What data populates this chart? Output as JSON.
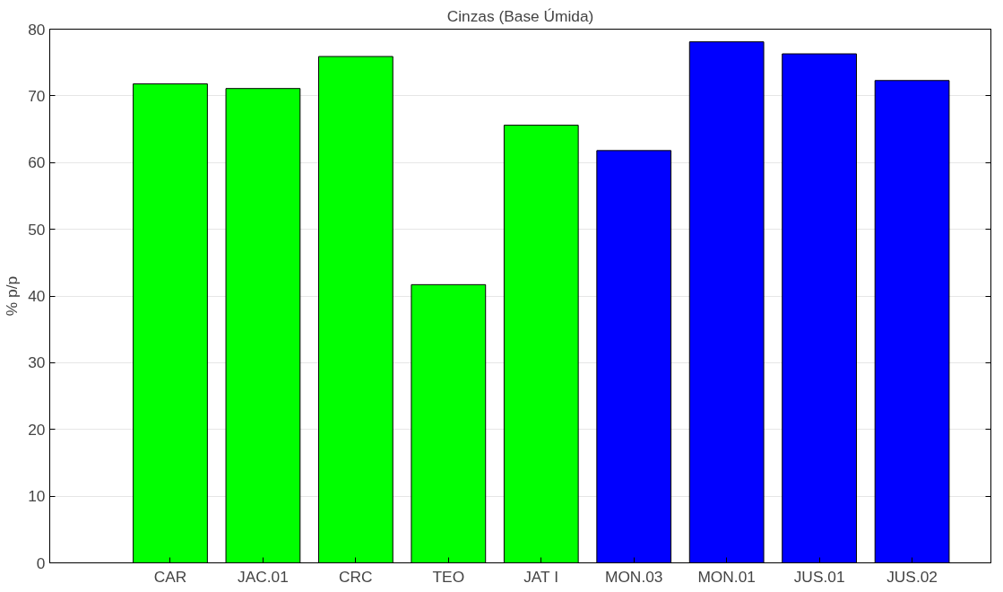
{
  "chart_data": {
    "type": "bar",
    "title": "Cinzas (Base Úmida)",
    "ylabel": "% p/p",
    "categories": [
      "CAR",
      "JAC.01",
      "CRC",
      "TEO",
      "JAT I",
      "MON.03",
      "MON.01",
      "JUS.01",
      "JUS.02"
    ],
    "values": [
      71.8,
      71.1,
      75.9,
      41.7,
      65.6,
      61.8,
      78.1,
      76.3,
      72.3
    ],
    "colors": [
      "#00ff00",
      "#00ff00",
      "#00ff00",
      "#00ff00",
      "#00ff00",
      "#0000ff",
      "#0000ff",
      "#0000ff",
      "#0000ff"
    ],
    "ylim": [
      0,
      80
    ],
    "yticks": [
      0,
      10,
      20,
      30,
      40,
      50,
      60,
      70,
      80
    ],
    "grid": "y"
  }
}
